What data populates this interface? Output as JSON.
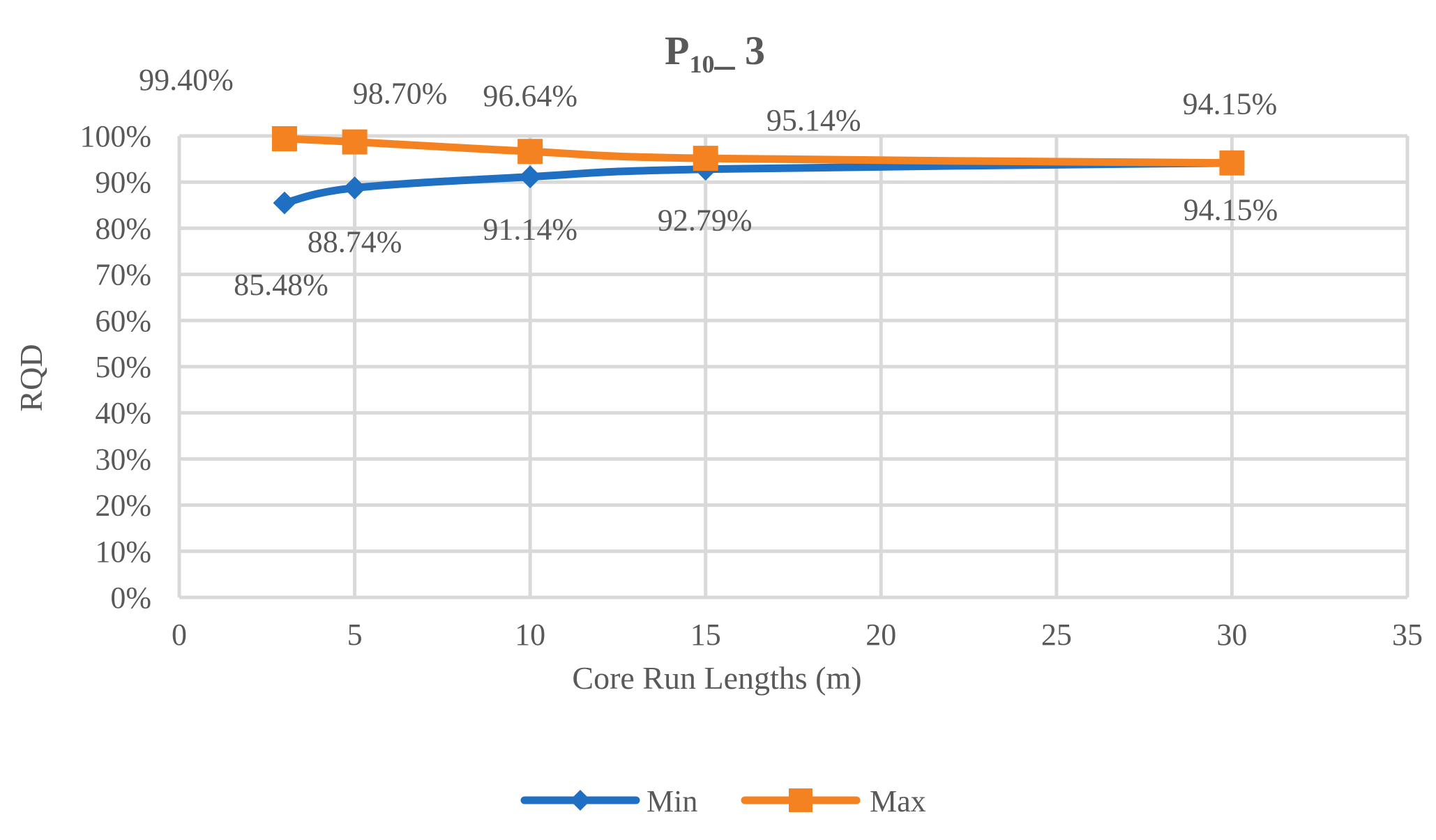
{
  "chart_data": {
    "type": "line",
    "title": {
      "main": "P",
      "subscript": "10",
      "suffix": "_ 3"
    },
    "xlabel": "Core Run Lengths (m)",
    "ylabel": "RQD",
    "xlim": [
      0,
      35
    ],
    "ylim": [
      0,
      100
    ],
    "x_ticks": [
      "0",
      "5",
      "10",
      "15",
      "20",
      "25",
      "30",
      "35"
    ],
    "y_ticks": [
      "0%",
      "10%",
      "20%",
      "30%",
      "40%",
      "50%",
      "60%",
      "70%",
      "80%",
      "90%",
      "100%"
    ],
    "grid": true,
    "legend_position": "bottom",
    "x": [
      3,
      5,
      10,
      15,
      30
    ],
    "series": [
      {
        "name": "Min",
        "color": "#1f6fc3",
        "marker": "diamond",
        "values": [
          85.48,
          88.74,
          91.14,
          92.79,
          94.15
        ],
        "labels": [
          "85.48%",
          "88.74%",
          "91.14%",
          "92.79%",
          "94.15%"
        ]
      },
      {
        "name": "Max",
        "color": "#f58220",
        "marker": "square",
        "values": [
          99.4,
          98.7,
          96.64,
          95.14,
          94.15
        ],
        "labels": [
          "99.40%",
          "98.70%",
          "96.64%",
          "95.14%",
          "94.15%"
        ]
      }
    ]
  }
}
